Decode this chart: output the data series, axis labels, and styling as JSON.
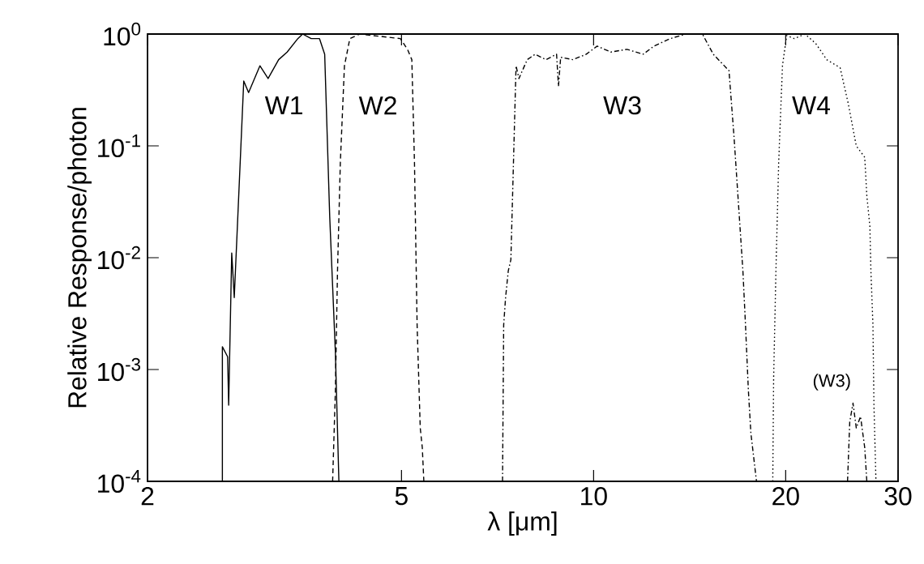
{
  "chart_data": {
    "type": "line",
    "xlabel": "λ [μm]",
    "ylabel": "Relative Response/photon",
    "log": "xy",
    "grid": false,
    "marker": "none",
    "xlim": [
      2,
      30
    ],
    "ylim": [
      0.0001,
      1
    ],
    "xticks": [
      2,
      5,
      10,
      20,
      30
    ],
    "yticks": [
      {
        "value": 0.0001,
        "label": "10$^{-4}$"
      },
      {
        "value": 0.001,
        "label": "10$^{-3}$"
      },
      {
        "value": 0.01,
        "label": "10$^{-2}$"
      },
      {
        "value": 0.1,
        "label": "10$^{-1}$"
      },
      {
        "value": 1,
        "label": "10$^{0}$"
      }
    ],
    "series": [
      {
        "name": "W1",
        "color": "#000000",
        "line_style": "solid",
        "x": [
          2.62,
          2.62,
          2.67,
          2.68,
          2.71,
          2.735,
          2.83,
          2.88,
          3.0,
          3.09,
          3.21,
          3.31,
          3.44,
          3.5,
          3.61,
          3.72,
          3.79,
          3.86,
          3.94,
          3.99
        ],
        "values": [
          0.0001,
          0.0016,
          0.0013,
          0.00048,
          0.011,
          0.0044,
          0.38,
          0.3,
          0.52,
          0.4,
          0.59,
          0.69,
          0.91,
          1.0,
          0.91,
          0.91,
          0.66,
          0.023,
          0.0014,
          0.0001
        ]
      },
      {
        "name": "W2",
        "color": "#000000",
        "line_style": "dashed",
        "x": [
          3.9,
          3.94,
          3.97,
          4.01,
          4.07,
          4.15,
          4.3,
          4.98,
          5.11,
          5.19,
          5.24,
          5.29,
          5.35,
          5.39,
          5.42
        ],
        "values": [
          0.0001,
          0.00066,
          0.0076,
          0.071,
          0.52,
          0.91,
          1.0,
          0.91,
          0.73,
          0.59,
          0.071,
          0.0025,
          0.0003,
          0.0002,
          0.0001
        ]
      },
      {
        "name": "W3",
        "color": "#000000",
        "line_style": "dashdot",
        "x": [
          7.2,
          7.23,
          7.28,
          7.35,
          7.42,
          7.56,
          7.64,
          7.87,
          8.1,
          8.42,
          8.75,
          8.81,
          8.88,
          9.28,
          9.74,
          10.13,
          10.64,
          11.28,
          11.96,
          12.43,
          13.18,
          13.97,
          14.81,
          15.4,
          16.3,
          16.6,
          17.14,
          17.3,
          17.48,
          17.64,
          18.0,
          21.0,
          25.0,
          25.2,
          25.5,
          25.8,
          26.2,
          26.6,
          26.8
        ],
        "values": [
          0.0001,
          0.0025,
          0.0044,
          0.0076,
          0.0096,
          0.52,
          0.4,
          0.59,
          0.66,
          0.59,
          0.66,
          0.34,
          0.62,
          0.59,
          0.66,
          0.78,
          0.69,
          0.73,
          0.66,
          0.78,
          0.91,
          1.0,
          1.0,
          0.66,
          0.47,
          0.12,
          0.0076,
          0.0025,
          0.00066,
          0.00027,
          0.0001,
          null,
          0.0001,
          0.00034,
          0.0005,
          0.0003,
          0.00038,
          0.0002,
          0.0001
        ]
      },
      {
        "name": "W4",
        "color": "#000000",
        "line_style": "dotted",
        "x": [
          19.09,
          19.15,
          19.31,
          19.5,
          19.77,
          20.07,
          20.63,
          21.45,
          22.3,
          23.19,
          24.34,
          25.06,
          25.8,
          26.6,
          26.8,
          27.1,
          27.2,
          27.4,
          27.5,
          27.7
        ],
        "values": [
          0.0001,
          0.00083,
          0.0076,
          0.071,
          0.52,
          0.97,
          0.91,
          1.0,
          0.82,
          0.59,
          0.5,
          0.24,
          0.1,
          0.079,
          0.036,
          0.019,
          0.0076,
          0.0025,
          0.00048,
          0.0001
        ]
      }
    ],
    "annotations": [
      "(W3)"
    ]
  }
}
